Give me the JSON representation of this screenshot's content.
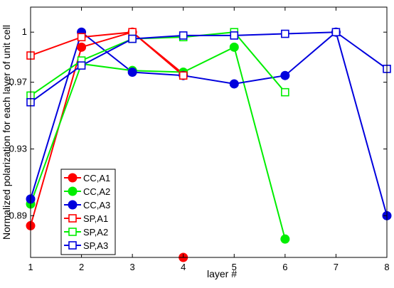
{
  "chart_data": {
    "type": "line",
    "title": "",
    "xlabel": "layer #",
    "ylabel": "Normalized polarization for each layer of unit cell",
    "xlim": [
      1,
      8
    ],
    "ylim": [
      0.865,
      1.015
    ],
    "xticks": [
      1,
      2,
      3,
      4,
      5,
      6,
      7,
      8
    ],
    "yticks": [
      0.89,
      0.93,
      0.97,
      1
    ],
    "ytick_labels": [
      "0.89",
      "0.93",
      "0.97",
      "1"
    ],
    "grid": false,
    "legend_position": "lower-left",
    "series": [
      {
        "name": "CC,A1",
        "color": "#ff0000",
        "marker": "circle",
        "x": [
          1,
          2,
          3,
          4
        ],
        "y": [
          0.884,
          0.991,
          1.0,
          0.975
        ]
      },
      {
        "name": "CC,A2",
        "color": "#00ee00",
        "marker": "circle",
        "x": [
          1,
          2,
          3,
          4,
          5,
          6
        ],
        "y": [
          0.897,
          0.981,
          0.977,
          0.976,
          0.991,
          0.876
        ]
      },
      {
        "name": "CC,A3",
        "color": "#0000dd",
        "marker": "circle",
        "x": [
          1,
          2,
          3,
          4,
          5,
          6,
          7,
          8
        ],
        "y": [
          0.9,
          1.0,
          0.976,
          0.974,
          0.969,
          0.974,
          1.0,
          0.89
        ]
      },
      {
        "name": "SP,A1",
        "color": "#ff0000",
        "marker": "square",
        "x": [
          1,
          2,
          3,
          4
        ],
        "y": [
          0.986,
          0.997,
          1.0,
          0.974
        ]
      },
      {
        "name": "SP,A2",
        "color": "#00ee00",
        "marker": "square",
        "x": [
          1,
          2,
          3,
          4,
          5,
          6
        ],
        "y": [
          0.962,
          0.983,
          0.996,
          0.997,
          1.0,
          0.964
        ]
      },
      {
        "name": "SP,A3",
        "color": "#0000dd",
        "marker": "square",
        "x": [
          1,
          2,
          3,
          4,
          5,
          6,
          7,
          8
        ],
        "y": [
          0.958,
          0.98,
          0.996,
          0.998,
          0.998,
          0.999,
          1.0,
          0.978
        ]
      }
    ],
    "extra_points": [
      {
        "series": "CC,A1",
        "x": 4,
        "y": 0.865
      }
    ]
  }
}
